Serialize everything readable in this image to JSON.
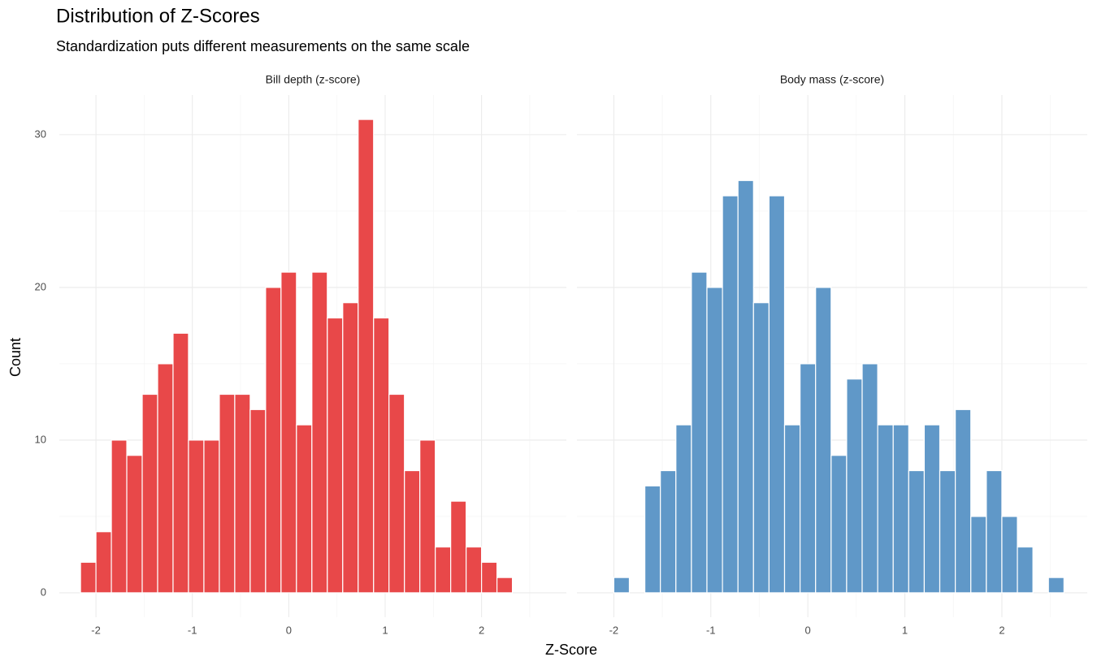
{
  "figure": {
    "title": "Distribution of Z-Scores",
    "subtitle": "Standardization puts different measurements on the same scale",
    "x_label": "Z-Score",
    "y_label": "Count"
  },
  "chart_data": [
    {
      "type": "histogram",
      "title": "Bill depth (z-score)",
      "color": "#e84849",
      "bins": [
        -2.16,
        -2.0,
        -1.84,
        -1.68,
        -1.52,
        -1.36,
        -1.2,
        -1.04,
        -0.88,
        -0.72,
        -0.56,
        -0.4,
        -0.24,
        -0.08,
        0.08,
        0.24,
        0.4,
        0.56,
        0.72,
        0.88,
        1.04,
        1.2,
        1.36,
        1.52,
        1.68,
        1.84,
        2.0,
        2.16,
        2.32,
        2.48,
        2.64
      ],
      "values": [
        2,
        4,
        10,
        9,
        13,
        15,
        17,
        10,
        10,
        13,
        13,
        12,
        20,
        21,
        11,
        21,
        18,
        19,
        31,
        18,
        13,
        8,
        10,
        3,
        6,
        3,
        2,
        1,
        0,
        0
      ],
      "xlim": [
        -2.38,
        2.88
      ],
      "ylim": [
        -1.6,
        32.6
      ],
      "xticks": [
        -2,
        -1,
        0,
        1,
        2
      ],
      "yticks": [
        0,
        10,
        20,
        30
      ],
      "grid": true
    },
    {
      "type": "histogram",
      "title": "Body mass (z-score)",
      "color": "#6098c8",
      "bins": [
        -2.16,
        -2.0,
        -1.84,
        -1.68,
        -1.52,
        -1.36,
        -1.2,
        -1.04,
        -0.88,
        -0.72,
        -0.56,
        -0.4,
        -0.24,
        -0.08,
        0.08,
        0.24,
        0.4,
        0.56,
        0.72,
        0.88,
        1.04,
        1.2,
        1.36,
        1.52,
        1.68,
        1.84,
        2.0,
        2.16,
        2.32,
        2.48,
        2.64
      ],
      "values": [
        0,
        1,
        0,
        7,
        8,
        11,
        21,
        20,
        26,
        27,
        19,
        26,
        11,
        15,
        20,
        9,
        14,
        15,
        11,
        11,
        8,
        11,
        8,
        12,
        5,
        8,
        5,
        3,
        0,
        1
      ],
      "xlim": [
        -2.38,
        2.88
      ],
      "ylim": [
        -1.6,
        32.6
      ],
      "xticks": [
        -2,
        -1,
        0,
        1,
        2
      ],
      "yticks": [
        0,
        10,
        20,
        30
      ],
      "grid": true
    }
  ]
}
